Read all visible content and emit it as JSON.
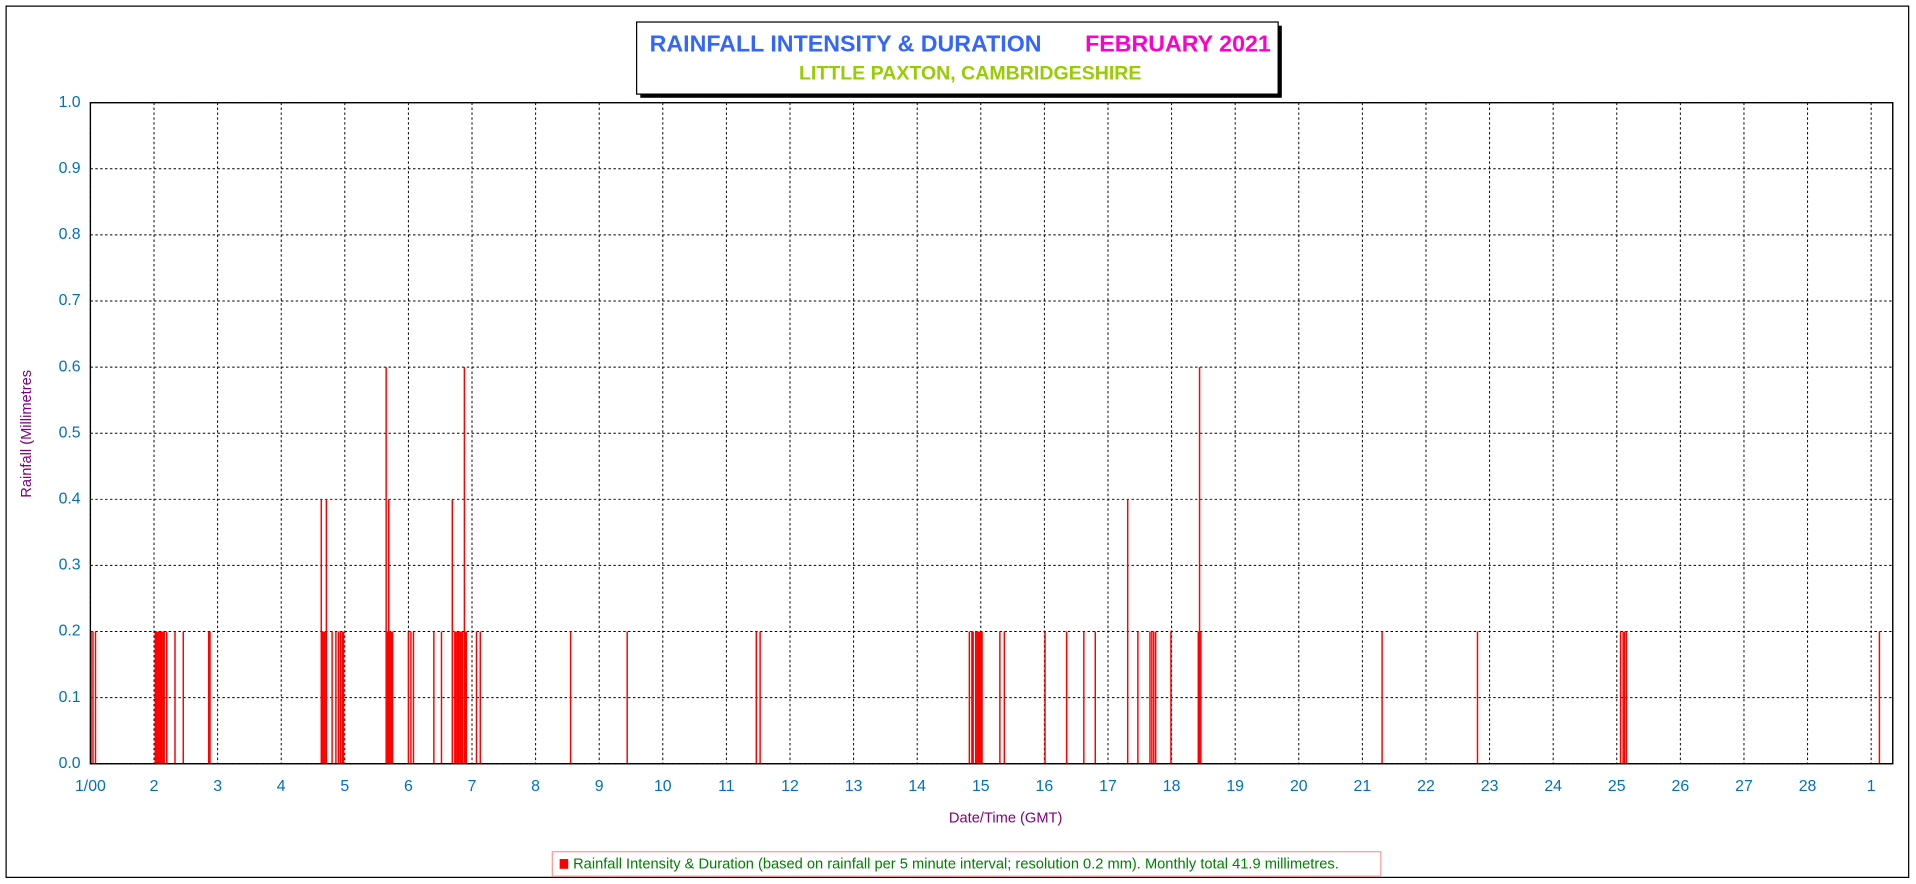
{
  "chart_data": {
    "type": "bar",
    "title": "RAINFALL INTENSITY & DURATION",
    "title_date": "FEBRUARY 2021",
    "subtitle": "LITTLE PAXTON, CAMBRIDGESHIRE",
    "y_label": "Rainfall (Millimetres",
    "x_label": "Date/Time (GMT)",
    "xlim": [
      1,
      29.34
    ],
    "xticks": [
      {
        "value": 1,
        "label": "1/00"
      },
      2,
      3,
      4,
      5,
      6,
      7,
      8,
      9,
      10,
      11,
      12,
      13,
      14,
      15,
      16,
      17,
      18,
      19,
      20,
      21,
      22,
      23,
      24,
      25,
      26,
      27,
      28,
      {
        "value": 29,
        "label": "1"
      }
    ],
    "ylim": [
      0,
      1
    ],
    "yticks": [
      {
        "value": 0,
        "label": "0.0"
      },
      0.1,
      0.2,
      0.3,
      0.4,
      0.5,
      0.6,
      0.7,
      0.8,
      0.9,
      {
        "value": 1,
        "label": "1.0"
      }
    ],
    "grid": true,
    "legend": "bottom",
    "series": [
      {
        "name": "Rainfall Intensity & Duration (based on rainfall per 5 minute interval; resolution 0.2 mm). Monthly total 41.9 millimetres.",
        "color": "#ff0000",
        "x": [
          1.01,
          1.04,
          1.08,
          2.02,
          2.04,
          2.06,
          2.08,
          2.1,
          2.12,
          2.14,
          2.16,
          2.2,
          2.33,
          2.46,
          2.86,
          2.88,
          4.63,
          4.65,
          4.67,
          4.69,
          4.71,
          4.8,
          4.86,
          4.9,
          4.93,
          4.96,
          4.98,
          5.65,
          5.67,
          5.69,
          5.71,
          5.73,
          5.75,
          6.0,
          6.04,
          6.08,
          6.4,
          6.52,
          6.69,
          6.73,
          6.75,
          6.77,
          6.79,
          6.81,
          6.83,
          6.85,
          6.88,
          6.89,
          6.91,
          7.07,
          7.13,
          8.55,
          9.44,
          11.47,
          11.53,
          14.82,
          14.86,
          14.88,
          14.92,
          14.94,
          14.96,
          14.98,
          15.0,
          15.02,
          15.3,
          15.37,
          16.01,
          16.35,
          16.62,
          16.8,
          17.31,
          17.47,
          17.66,
          17.69,
          17.72,
          17.75,
          17.99,
          18.42,
          18.44,
          18.46,
          21.31,
          22.81,
          25.06,
          25.1,
          25.12,
          25.15,
          29.13
        ],
        "values": [
          0.2,
          0.2,
          0.2,
          0.2,
          0.2,
          0.2,
          0.2,
          0.2,
          0.2,
          0.2,
          0.2,
          0.2,
          0.2,
          0.2,
          0.2,
          0.2,
          0.4,
          0.2,
          0.2,
          0.2,
          0.4,
          0.2,
          0.2,
          0.2,
          0.2,
          0.2,
          0.2,
          0.6,
          0.2,
          0.4,
          0.2,
          0.2,
          0.2,
          0.2,
          0.2,
          0.2,
          0.2,
          0.2,
          0.4,
          0.2,
          0.2,
          0.2,
          0.2,
          0.2,
          0.2,
          0.2,
          0.6,
          0.2,
          0.2,
          0.2,
          0.2,
          0.2,
          0.2,
          0.2,
          0.2,
          0.2,
          0.2,
          0.2,
          0.2,
          0.2,
          0.2,
          0.2,
          0.2,
          0.2,
          0.2,
          0.2,
          0.2,
          0.2,
          0.2,
          0.2,
          0.4,
          0.2,
          0.2,
          0.2,
          0.2,
          0.2,
          0.2,
          0.2,
          0.6,
          0.2,
          0.2,
          0.2,
          0.2,
          0.2,
          0.2,
          0.2,
          0.2
        ]
      }
    ]
  }
}
